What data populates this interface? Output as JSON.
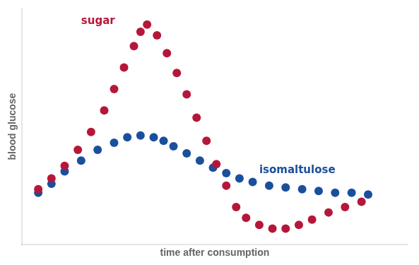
{
  "chart_data": {
    "type": "scatter",
    "xlabel": "time after consumption",
    "ylabel": "blood glucose",
    "xlim": [
      -0.05,
      1.12
    ],
    "ylim": [
      -0.27,
      1.05
    ],
    "tick_labels": false,
    "grid": false,
    "series": [
      {
        "color": "#b5173a",
        "x": [
          0.0,
          0.04,
          0.08,
          0.12,
          0.16,
          0.2,
          0.23,
          0.26,
          0.29,
          0.31,
          0.33,
          0.36,
          0.39,
          0.42,
          0.45,
          0.48,
          0.51,
          0.54,
          0.57,
          0.6,
          0.63,
          0.67,
          0.71,
          0.75,
          0.79,
          0.83,
          0.88,
          0.93,
          0.98
        ],
        "values": [
          0.04,
          0.1,
          0.17,
          0.26,
          0.36,
          0.48,
          0.6,
          0.72,
          0.84,
          0.92,
          0.96,
          0.9,
          0.8,
          0.69,
          0.57,
          0.44,
          0.31,
          0.18,
          0.06,
          -0.06,
          -0.12,
          -0.16,
          -0.18,
          -0.18,
          -0.16,
          -0.13,
          -0.09,
          -0.06,
          -0.03
        ]
      },
      {
        "color": "#1a4f9c",
        "x": [
          0.0,
          0.04,
          0.08,
          0.13,
          0.18,
          0.23,
          0.27,
          0.31,
          0.35,
          0.38,
          0.41,
          0.45,
          0.49,
          0.53,
          0.57,
          0.61,
          0.65,
          0.7,
          0.75,
          0.8,
          0.85,
          0.9,
          0.95,
          1.0
        ],
        "values": [
          0.02,
          0.07,
          0.14,
          0.2,
          0.26,
          0.3,
          0.33,
          0.34,
          0.33,
          0.31,
          0.28,
          0.24,
          0.2,
          0.16,
          0.13,
          0.1,
          0.08,
          0.06,
          0.05,
          0.04,
          0.03,
          0.02,
          0.02,
          0.01
        ]
      }
    ],
    "annotations": [
      {
        "text": "sugar",
        "x": 0.13,
        "y": 1.01,
        "color": "#b5173a"
      },
      {
        "text": "isomaltulose",
        "x": 0.67,
        "y": 0.175,
        "color": "#1a4f9c"
      }
    ]
  }
}
